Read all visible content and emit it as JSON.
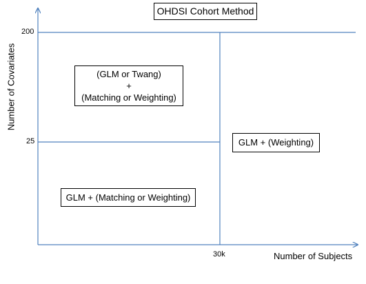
{
  "title": "OHDSI Cohort Method",
  "axes": {
    "x_label": "Number of Subjects",
    "y_label": "Number of Covariates",
    "x_ticks": [
      "30k"
    ],
    "y_ticks": [
      "200",
      "25"
    ]
  },
  "regions": {
    "top_left": [
      "(GLM or Twang)",
      "+",
      "(Matching or Weighting)"
    ],
    "right": "GLM + (Weighting)",
    "bottom_left": "GLM + (Matching or Weighting)"
  },
  "colors": {
    "axis_line": "#4f81bd",
    "text": "#000000",
    "box_border": "#000000"
  }
}
